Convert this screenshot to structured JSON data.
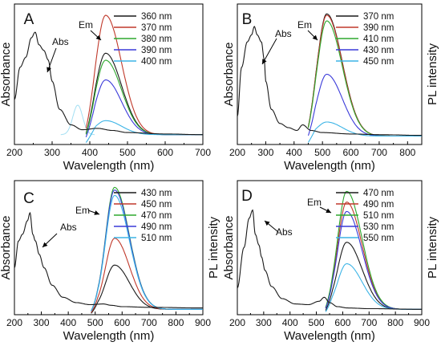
{
  "chart_data": [
    {
      "panel": "A",
      "type": "line",
      "xlabel": "Wavelength (nm)",
      "ylabel_left": "Absorbance",
      "ylabel_right": "",
      "xlim": [
        200,
        700
      ],
      "xticks": [
        200,
        300,
        400,
        500,
        600,
        700
      ],
      "ylim": [
        0,
        1
      ],
      "annotations": [
        "Abs",
        "Em"
      ],
      "absorbance": {
        "x": [
          200,
          215,
          230,
          245,
          255,
          265,
          278,
          290,
          300,
          320,
          350,
          380,
          420,
          460,
          500,
          600,
          700
        ],
        "y": [
          0.32,
          0.55,
          0.62,
          0.76,
          0.8,
          0.71,
          0.67,
          0.6,
          0.45,
          0.25,
          0.14,
          0.105,
          0.115,
          0.1,
          0.085,
          0.075,
          0.07
        ]
      },
      "emission": {
        "peak": 442,
        "sigma_left": 26,
        "sigma_right": 42,
        "onset": 390,
        "baseline": 0.07,
        "series": [
          {
            "name": "360 nm",
            "color": "#1a1a1a",
            "amplitude": 0.58
          },
          {
            "name": "370 nm",
            "color": "#c0392b",
            "amplitude": 0.85
          },
          {
            "name": "380 nm",
            "color": "#2ea82e",
            "amplitude": 0.53
          },
          {
            "name": "390 nm",
            "color": "#3a3ad9",
            "amplitude": 0.39
          },
          {
            "name": "400 nm",
            "color": "#3cb4e6",
            "amplitude": 0.1
          }
        ]
      },
      "excitation_ghost": {
        "peak": 368,
        "sigma": 13,
        "amplitude": 0.21,
        "color": "#a3dff3"
      }
    },
    {
      "panel": "B",
      "type": "line",
      "xlabel": "Wavelength (nm)",
      "ylabel_left": "Absorbance",
      "ylabel_right": "PL intensity",
      "xlim": [
        200,
        850
      ],
      "xticks": [
        200,
        300,
        400,
        500,
        600,
        700,
        800
      ],
      "ylim": [
        0,
        1
      ],
      "annotations": [
        "Abs",
        "Em"
      ],
      "absorbance": {
        "x": [
          200,
          215,
          235,
          250,
          260,
          270,
          285,
          295,
          300,
          320,
          350,
          380,
          410,
          430,
          460,
          500,
          600,
          700,
          850
        ],
        "y": [
          0.2,
          0.55,
          0.73,
          0.78,
          0.84,
          0.78,
          0.73,
          0.6,
          0.45,
          0.25,
          0.15,
          0.12,
          0.1,
          0.14,
          0.1,
          0.085,
          0.075,
          0.07,
          0.065
        ]
      },
      "emission": {
        "peak": 515,
        "sigma_left": 33,
        "sigma_right": 55,
        "onset": 450,
        "baseline": 0.06,
        "series": [
          {
            "name": "370 nm",
            "color": "#1a1a1a",
            "amplitude": 0.87
          },
          {
            "name": "390 nm",
            "color": "#c0392b",
            "amplitude": 0.86
          },
          {
            "name": "410 nm",
            "color": "#2ea82e",
            "amplitude": 0.82
          },
          {
            "name": "430 nm",
            "color": "#3a3ad9",
            "amplitude": 0.44
          },
          {
            "name": "450 nm",
            "color": "#3cb4e6",
            "amplitude": 0.1
          }
        ]
      }
    },
    {
      "panel": "C",
      "type": "line",
      "xlabel": "Wavelength (nm)",
      "ylabel_left": "Absorbance",
      "ylabel_right": "PL intensity",
      "xlim": [
        200,
        900
      ],
      "xticks": [
        200,
        300,
        400,
        500,
        600,
        700,
        800,
        900
      ],
      "ylim": [
        0,
        1
      ],
      "annotations": [
        "Abs",
        "Em"
      ],
      "absorbance": {
        "x": [
          200,
          215,
          230,
          248,
          258,
          268,
          278,
          292,
          310,
          340,
          380,
          430,
          480,
          530,
          560,
          600,
          700,
          900
        ],
        "y": [
          0.35,
          0.55,
          0.6,
          0.7,
          0.76,
          0.6,
          0.55,
          0.45,
          0.35,
          0.22,
          0.13,
          0.09,
          0.075,
          0.08,
          0.07,
          0.06,
          0.055,
          0.05
        ]
      },
      "emission": {
        "peak": 572,
        "sigma_left": 33,
        "sigma_right": 55,
        "onset": 485,
        "baseline": 0.04,
        "series": [
          {
            "name": "430 nm",
            "color": "#1a1a1a",
            "amplitude": 0.33
          },
          {
            "name": "450 nm",
            "color": "#c0392b",
            "amplitude": 0.53
          },
          {
            "name": "470 nm",
            "color": "#2ea82e",
            "amplitude": 0.91
          },
          {
            "name": "490 nm",
            "color": "#3a3ad9",
            "amplitude": 0.89
          },
          {
            "name": "510 nm",
            "color": "#3cb4e6",
            "amplitude": 0.85
          }
        ]
      }
    },
    {
      "panel": "D",
      "type": "line",
      "xlabel": "Wavelength (nm)",
      "ylabel_left": "Absorbance",
      "ylabel_right": "PL intensity",
      "xlim": [
        200,
        900
      ],
      "xticks": [
        200,
        300,
        400,
        500,
        600,
        700,
        800,
        900
      ],
      "ylim": [
        0,
        1
      ],
      "annotations": [
        "Abs",
        "Em"
      ],
      "absorbance": {
        "x": [
          200,
          225,
          245,
          258,
          268,
          282,
          292,
          305,
          330,
          370,
          420,
          470,
          510,
          530,
          550,
          580,
          620,
          700,
          900
        ],
        "y": [
          0.2,
          0.5,
          0.72,
          0.78,
          0.6,
          0.52,
          0.43,
          0.33,
          0.21,
          0.12,
          0.08,
          0.075,
          0.1,
          0.13,
          0.09,
          0.06,
          0.05,
          0.045,
          0.04
        ]
      },
      "emission": {
        "peak": 615,
        "sigma_left": 34,
        "sigma_right": 58,
        "onset": 535,
        "baseline": 0.04,
        "series": [
          {
            "name": "470 nm",
            "color": "#1a1a1a",
            "amplitude": 0.5
          },
          {
            "name": "490 nm",
            "color": "#c0392b",
            "amplitude": 0.8
          },
          {
            "name": "510 nm",
            "color": "#2ea82e",
            "amplitude": 0.88
          },
          {
            "name": "530 nm",
            "color": "#3a3ad9",
            "amplitude": 0.73
          },
          {
            "name": "550 nm",
            "color": "#3cb4e6",
            "amplitude": 0.34
          }
        ]
      }
    }
  ]
}
